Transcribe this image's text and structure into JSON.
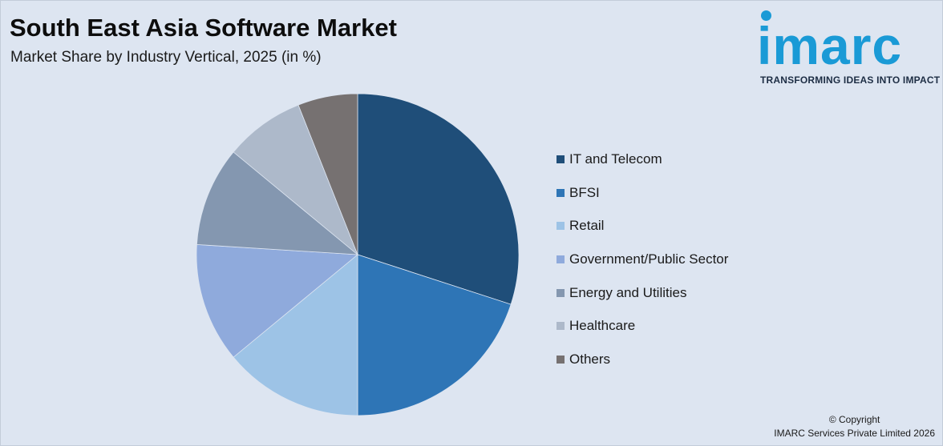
{
  "header": {
    "title": "South East Asia Software Market",
    "subtitle": "Market Share by Industry Vertical, 2025 (in %)"
  },
  "logo": {
    "wordmark": "imarc",
    "tagline": "TRANSFORMING IDEAS INTO IMPACT",
    "color": "#1a9ad6"
  },
  "footer": {
    "copyright_line": "© Copyright",
    "company_line": "IMARC Services Private Limited 2026"
  },
  "chart_data": {
    "type": "pie",
    "title": "South East Asia Software Market",
    "subtitle": "Market Share by Industry Vertical, 2025 (in %)",
    "legend_position": "right",
    "start_angle": "top, clockwise",
    "slices": [
      {
        "label": "IT and Telecom",
        "value": 30.0,
        "color": "#1f4e79"
      },
      {
        "label": "BFSI",
        "value": 20.0,
        "color": "#2e75b6"
      },
      {
        "label": "Retail",
        "value": 14.0,
        "color": "#9dc3e6"
      },
      {
        "label": "Government/Public Sector",
        "value": 12.0,
        "color": "#8faadc"
      },
      {
        "label": "Energy and Utilities",
        "value": 10.0,
        "color": "#8497b0"
      },
      {
        "label": "Healthcare",
        "value": 8.0,
        "color": "#adb9ca"
      },
      {
        "label": "Others",
        "value": 6.0,
        "color": "#767171"
      }
    ]
  }
}
